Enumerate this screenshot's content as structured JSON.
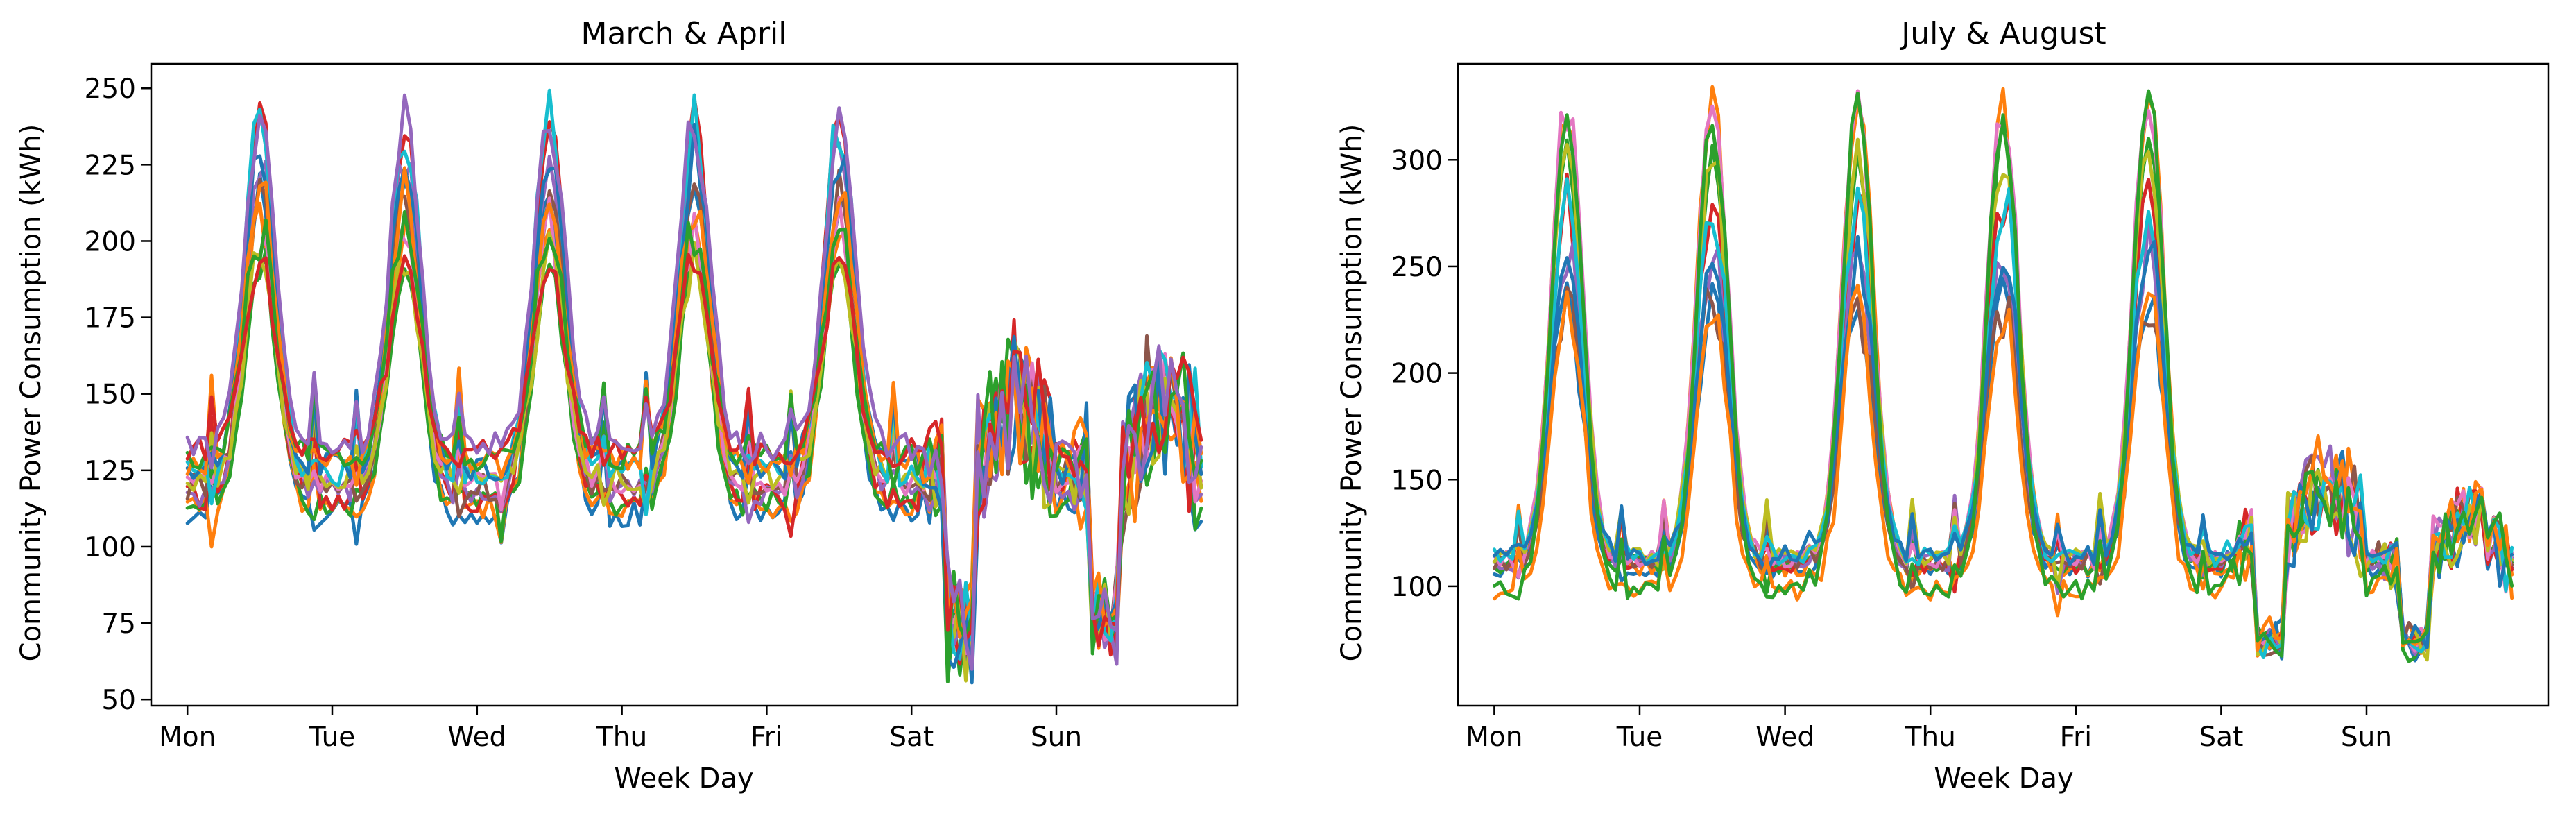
{
  "colors": [
    "#1f77b4",
    "#ff7f0e",
    "#2ca02c",
    "#d62728",
    "#9467bd",
    "#8c564b",
    "#e377c2",
    "#bcbd22",
    "#17becf"
  ],
  "chart_data": [
    {
      "type": "line",
      "title": "March & April",
      "xlabel": "Week Day",
      "ylabel": "Community Power Consumption (kWh)",
      "x_ticks": [
        "Mon",
        "Tue",
        "Wed",
        "Thu",
        "Fri",
        "Sat",
        "Sun"
      ],
      "xlim": [
        -0.25,
        7.25
      ],
      "ylim": [
        48,
        258
      ],
      "y_ticks": [
        50,
        75,
        100,
        125,
        150,
        175,
        200,
        225,
        250
      ],
      "grid": false,
      "series_count": 14,
      "profile": {
        "weekday_base": [
          100,
          145
        ],
        "weekday_peak": [
          190,
          248
        ],
        "sat_level": [
          100,
          175
        ],
        "sat_dip": [
          58,
          90
        ],
        "sun_level": [
          100,
          187
        ],
        "sun_dip": [
          65,
          90
        ]
      }
    },
    {
      "type": "line",
      "title": "July & August",
      "xlabel": "Week Day",
      "ylabel": "Community Power Consumption (kWh)",
      "x_ticks": [
        "Mon",
        "Tue",
        "Wed",
        "Thu",
        "Fri",
        "Sat",
        "Sun"
      ],
      "xlim": [
        -0.25,
        7.25
      ],
      "ylim": [
        44,
        345
      ],
      "y_ticks": [
        100,
        150,
        200,
        250,
        300
      ],
      "grid": false,
      "series_count": 12,
      "profile": {
        "weekday_base": [
          98,
          115
        ],
        "weekday_peak": [
          215,
          335
        ],
        "sat_level": [
          100,
          175
        ],
        "sat_dip": [
          68,
          80
        ],
        "sun_level": [
          95,
          155
        ],
        "sun_dip": [
          70,
          80
        ]
      }
    }
  ]
}
